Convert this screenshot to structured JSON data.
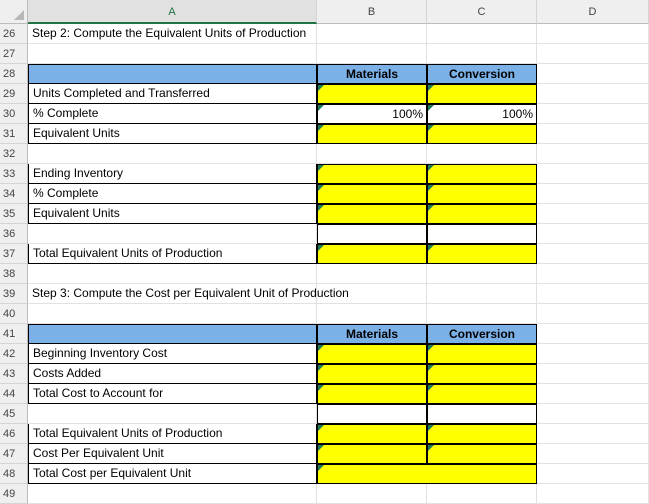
{
  "columns": [
    "A",
    "B",
    "C",
    "D"
  ],
  "selected_column": "A",
  "rows": [
    {
      "n": "26",
      "a": "Step 2: Compute the Equivalent Units of Production",
      "b": "",
      "c": "",
      "kind": "title"
    },
    {
      "n": "27",
      "a": "",
      "b": "",
      "c": "",
      "kind": "blank"
    },
    {
      "n": "28",
      "a": "",
      "b": "Materials",
      "c": "Conversion",
      "kind": "header"
    },
    {
      "n": "29",
      "a": "Units Completed and Transferred",
      "b": "",
      "c": "",
      "kind": "yellow"
    },
    {
      "n": "30",
      "a": "% Complete",
      "b": "100%",
      "c": "100%",
      "kind": "white"
    },
    {
      "n": "31",
      "a": "Equivalent Units",
      "b": "",
      "c": "",
      "kind": "yellow"
    },
    {
      "n": "32",
      "a": "",
      "b": "",
      "c": "",
      "kind": "blank"
    },
    {
      "n": "33",
      "a": "Ending Inventory",
      "b": "",
      "c": "",
      "kind": "yellow"
    },
    {
      "n": "34",
      "a": "% Complete",
      "b": "",
      "c": "",
      "kind": "yellow"
    },
    {
      "n": "35",
      "a": "Equivalent Units",
      "b": "",
      "c": "",
      "kind": "yellow"
    },
    {
      "n": "36",
      "a": "",
      "b": "",
      "c": "",
      "kind": "whitebox"
    },
    {
      "n": "37",
      "a": "Total Equivalent Units of Production",
      "b": "",
      "c": "",
      "kind": "yellow"
    },
    {
      "n": "38",
      "a": "",
      "b": "",
      "c": "",
      "kind": "blank"
    },
    {
      "n": "39",
      "a": "Step 3:  Compute the Cost per Equivalent Unit of Production",
      "b": "",
      "c": "",
      "kind": "title"
    },
    {
      "n": "40",
      "a": "",
      "b": "",
      "c": "",
      "kind": "blank"
    },
    {
      "n": "41",
      "a": "",
      "b": "Materials",
      "c": "Conversion",
      "kind": "header"
    },
    {
      "n": "42",
      "a": "Beginning Inventory Cost",
      "b": "",
      "c": "",
      "kind": "yellow"
    },
    {
      "n": "43",
      "a": "Costs Added",
      "b": "",
      "c": "",
      "kind": "yellow"
    },
    {
      "n": "44",
      "a": "Total Cost to Account for",
      "b": "",
      "c": "",
      "kind": "yellow"
    },
    {
      "n": "45",
      "a": "",
      "b": "",
      "c": "",
      "kind": "whitebox"
    },
    {
      "n": "46",
      "a": "Total Equivalent Units of Production",
      "b": "",
      "c": "",
      "kind": "yellow"
    },
    {
      "n": "47",
      "a": "Cost Per Equivalent Unit",
      "b": "",
      "c": "",
      "kind": "yellow"
    },
    {
      "n": "48",
      "a": "Total Cost per Equivalent Unit",
      "b": "",
      "c": "",
      "kind": "yellowmerged"
    },
    {
      "n": "49",
      "a": "",
      "b": "",
      "c": "",
      "kind": "blank"
    }
  ]
}
